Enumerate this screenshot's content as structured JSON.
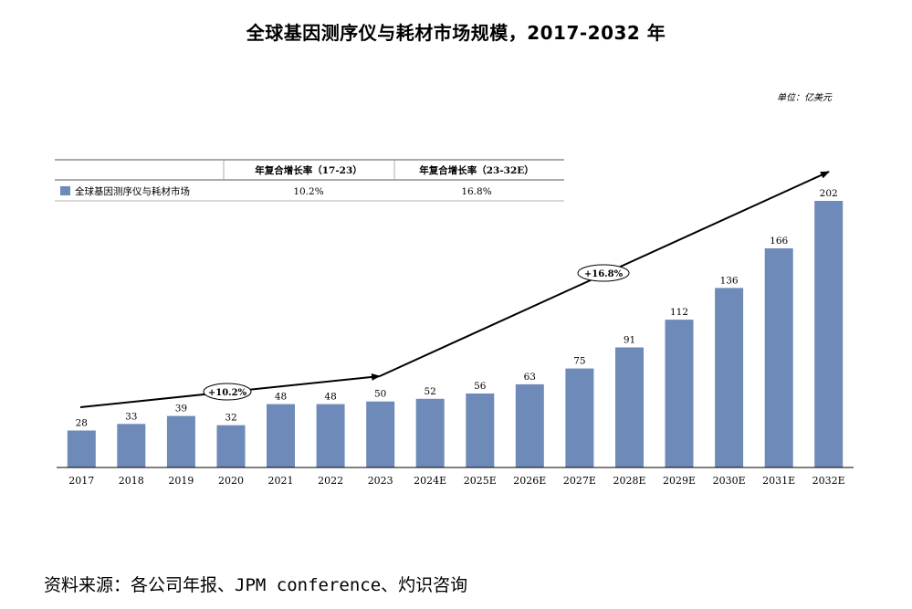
{
  "title": "全球基因测序仪与耗材市场规模，2017-2032 年",
  "unit": "单位：亿美元",
  "source": "资料来源：各公司年报、JPM conference、灼识咨询",
  "legend": {
    "series_name": "全球基因测序仪与耗材市场",
    "color": "#6E8AB8"
  },
  "cagr_table": {
    "headers": [
      "年复合增长率（17-23）",
      "年复合增长率（23-32E）"
    ],
    "values": [
      "10.2%",
      "16.8%"
    ]
  },
  "annotations": {
    "cagr_1": "+10.2%",
    "cagr_2": "+16.8%"
  },
  "chart_data": {
    "type": "bar",
    "title": "全球基因测序仪与耗材市场规模，2017-2032 年",
    "xlabel": "",
    "ylabel": "",
    "categories": [
      "2017",
      "2018",
      "2019",
      "2020",
      "2021",
      "2022",
      "2023",
      "2024E",
      "2025E",
      "2026E",
      "2027E",
      "2028E",
      "2029E",
      "2030E",
      "2031E",
      "2032E"
    ],
    "series": [
      {
        "name": "全球基因测序仪与耗材市场",
        "values": [
          28,
          33,
          39,
          32,
          48,
          48,
          50,
          52,
          56,
          63,
          75,
          91,
          112,
          136,
          166,
          202
        ]
      }
    ],
    "ylim": [
      0,
      210
    ]
  }
}
